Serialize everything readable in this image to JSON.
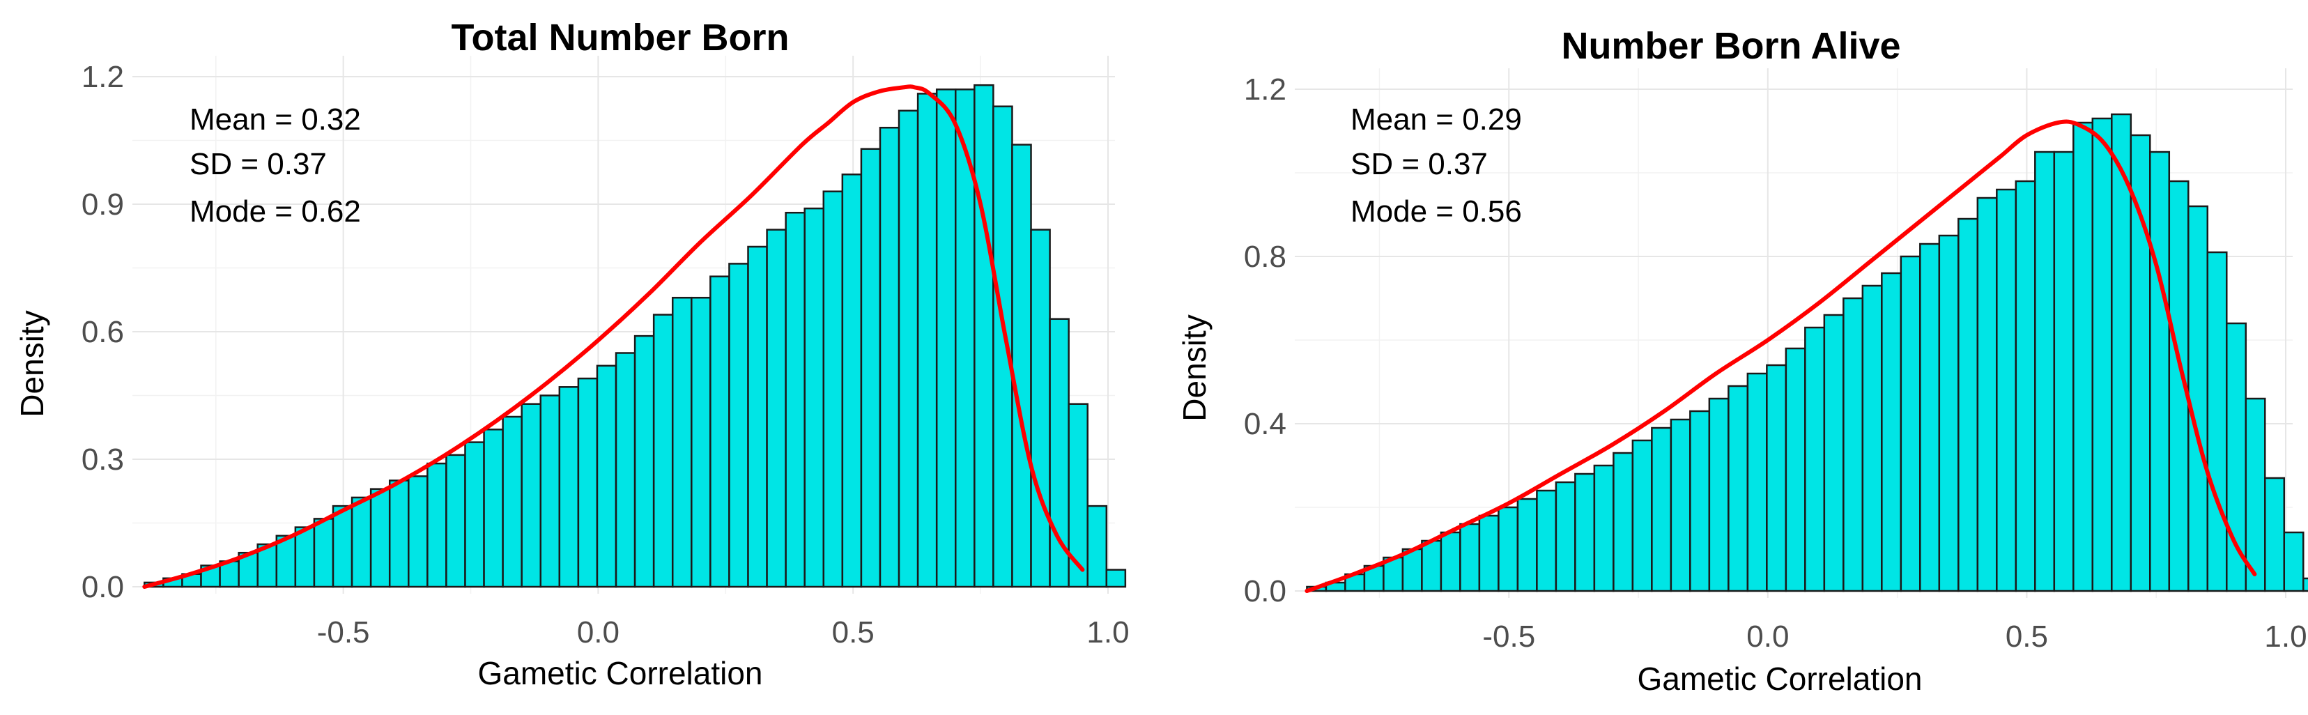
{
  "colors": {
    "bar_fill": "#00e5e5",
    "bar_outline": "#1a1a1a",
    "density_curve": "#ff0000",
    "grid": "#e6e6e6"
  },
  "chart_data": [
    {
      "type": "bar",
      "title": "Total Number Born",
      "xlabel": "Gametic Correlation",
      "ylabel": "Density",
      "xlim": [
        -0.9,
        1.0
      ],
      "ylim": [
        0,
        1.2
      ],
      "xticks": [
        -0.5,
        0.0,
        0.5,
        1.0
      ],
      "xtick_labels": [
        "-0.5",
        "0.0",
        "0.5",
        "1.0"
      ],
      "yticks": [
        0.0,
        0.3,
        0.6,
        0.9,
        1.2
      ],
      "ytick_labels": [
        "0.0",
        "0.3",
        "0.6",
        "0.9",
        "1.2"
      ],
      "grid": true,
      "stats": [
        "Mean = 0.32",
        "SD = 0.37",
        "Mode = 0.62"
      ],
      "bin_start": -0.89,
      "bin_width": 0.037,
      "values": [
        0.01,
        0.02,
        0.03,
        0.05,
        0.06,
        0.08,
        0.1,
        0.12,
        0.14,
        0.16,
        0.19,
        0.21,
        0.23,
        0.25,
        0.26,
        0.29,
        0.31,
        0.34,
        0.37,
        0.4,
        0.43,
        0.45,
        0.47,
        0.49,
        0.52,
        0.55,
        0.59,
        0.64,
        0.68,
        0.68,
        0.73,
        0.76,
        0.8,
        0.84,
        0.88,
        0.89,
        0.93,
        0.97,
        1.03,
        1.08,
        1.12,
        1.16,
        1.17,
        1.17,
        1.18,
        1.13,
        1.04,
        0.84,
        0.63,
        0.43,
        0.19,
        0.04
      ],
      "density_x": [
        -0.89,
        -0.8,
        -0.7,
        -0.6,
        -0.5,
        -0.4,
        -0.3,
        -0.2,
        -0.1,
        0.0,
        0.1,
        0.2,
        0.3,
        0.4,
        0.45,
        0.5,
        0.55,
        0.6,
        0.62,
        0.65,
        0.7,
        0.75,
        0.8,
        0.85,
        0.9,
        0.95
      ],
      "density_y": [
        0.0,
        0.03,
        0.07,
        0.12,
        0.18,
        0.24,
        0.31,
        0.39,
        0.48,
        0.58,
        0.69,
        0.81,
        0.92,
        1.04,
        1.09,
        1.14,
        1.165,
        1.175,
        1.175,
        1.16,
        1.09,
        0.9,
        0.58,
        0.28,
        0.12,
        0.04
      ]
    },
    {
      "type": "bar",
      "title": "Number Born Alive",
      "xlabel": "Gametic Correlation",
      "ylabel": "Density",
      "xlim": [
        -0.9,
        1.0
      ],
      "ylim": [
        0,
        1.2
      ],
      "xticks": [
        -0.5,
        0.0,
        0.5,
        1.0
      ],
      "xtick_labels": [
        "-0.5",
        "0.0",
        "0.5",
        "1.0"
      ],
      "yticks": [
        0.0,
        0.4,
        0.8,
        1.2
      ],
      "ytick_labels": [
        "0.0",
        "0.4",
        "0.8",
        "1.2"
      ],
      "grid": true,
      "stats": [
        "Mean = 0.29",
        "SD = 0.37",
        "Mode = 0.56"
      ],
      "bin_start": -0.89,
      "bin_width": 0.037,
      "values": [
        0.01,
        0.02,
        0.04,
        0.06,
        0.08,
        0.1,
        0.12,
        0.14,
        0.16,
        0.18,
        0.2,
        0.22,
        0.24,
        0.26,
        0.28,
        0.3,
        0.33,
        0.36,
        0.39,
        0.41,
        0.43,
        0.46,
        0.49,
        0.52,
        0.54,
        0.58,
        0.63,
        0.66,
        0.7,
        0.73,
        0.76,
        0.8,
        0.83,
        0.85,
        0.89,
        0.94,
        0.96,
        0.98,
        1.05,
        1.05,
        1.12,
        1.13,
        1.14,
        1.09,
        1.05,
        0.98,
        0.92,
        0.81,
        0.64,
        0.46,
        0.27,
        0.14,
        0.03
      ],
      "density_x": [
        -0.89,
        -0.8,
        -0.7,
        -0.6,
        -0.5,
        -0.4,
        -0.3,
        -0.2,
        -0.1,
        0.0,
        0.1,
        0.2,
        0.3,
        0.4,
        0.45,
        0.5,
        0.56,
        0.6,
        0.65,
        0.7,
        0.75,
        0.8,
        0.85,
        0.9,
        0.94
      ],
      "density_y": [
        0.0,
        0.04,
        0.09,
        0.15,
        0.21,
        0.28,
        0.35,
        0.43,
        0.52,
        0.6,
        0.69,
        0.79,
        0.89,
        0.99,
        1.04,
        1.09,
        1.12,
        1.115,
        1.07,
        0.96,
        0.78,
        0.52,
        0.28,
        0.12,
        0.04
      ]
    }
  ]
}
